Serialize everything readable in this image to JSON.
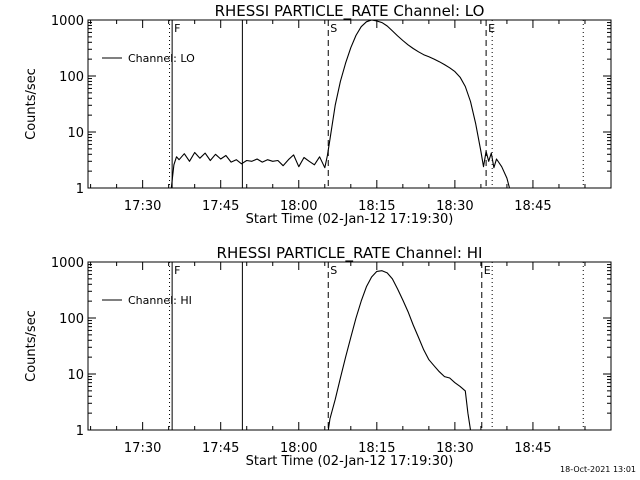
{
  "timestamp": "18-Oct-2021 13:01",
  "colors": {
    "background": "#ffffff",
    "foreground": "#000000"
  },
  "chart_data": [
    {
      "type": "line",
      "title": "RHESSI PARTICLE_RATE Channel: LO",
      "xlabel": "Start Time (02-Jan-12 17:19:30)",
      "ylabel": "Counts/sec",
      "yscale": "log",
      "ylim": [
        1,
        1000
      ],
      "xlim": [
        "17:19:30",
        "19:00:00"
      ],
      "y_ticks": [
        "1",
        "10",
        "100",
        "1000"
      ],
      "x_ticks": [
        "17:30",
        "17:45",
        "18:00",
        "18:15",
        "18:30",
        "18:45"
      ],
      "legend": {
        "position": "top-left",
        "entries": [
          "Channel: LO"
        ]
      },
      "series": [
        {
          "name": "Channel: LO",
          "x": [
            "17:35:30",
            "17:36:00",
            "17:36:30",
            "17:37:00",
            "17:38:00",
            "17:39:00",
            "17:40:00",
            "17:41:00",
            "17:42:00",
            "17:43:00",
            "17:44:00",
            "17:45:00",
            "17:46:00",
            "17:47:00",
            "17:48:00",
            "17:49:00",
            "17:50:00",
            "17:51:00",
            "17:52:00",
            "17:53:00",
            "17:54:00",
            "17:55:00",
            "17:56:00",
            "17:57:00",
            "17:58:00",
            "17:59:00",
            "18:00:00",
            "18:01:00",
            "18:02:00",
            "18:03:00",
            "18:04:00",
            "18:05:00",
            "18:05:30",
            "18:06:00",
            "18:07:00",
            "18:08:00",
            "18:09:00",
            "18:10:00",
            "18:11:00",
            "18:12:00",
            "18:13:00",
            "18:14:00",
            "18:15:00",
            "18:16:00",
            "18:17:00",
            "18:18:00",
            "18:19:00",
            "18:20:00",
            "18:21:00",
            "18:22:00",
            "18:23:00",
            "18:24:00",
            "18:25:00",
            "18:26:00",
            "18:27:00",
            "18:28:00",
            "18:29:00",
            "18:30:00",
            "18:31:00",
            "18:32:00",
            "18:33:00",
            "18:34:00",
            "18:35:00",
            "18:35:30",
            "18:36:00",
            "18:36:30",
            "18:37:00",
            "18:37:30",
            "18:38:00",
            "18:39:00",
            "18:40:00",
            "18:40:30"
          ],
          "values": [
            1,
            2.6,
            3.6,
            3.2,
            4.1,
            3.0,
            4.3,
            3.4,
            4.2,
            3.1,
            4.0,
            3.3,
            3.8,
            2.9,
            3.2,
            2.7,
            3.1,
            3.0,
            3.3,
            2.9,
            3.2,
            3.0,
            3.1,
            2.5,
            3.2,
            3.9,
            2.4,
            3.5,
            3.0,
            2.6,
            3.6,
            2.3,
            3.8,
            7.5,
            30,
            80,
            170,
            320,
            530,
            760,
            930,
            1000,
            960,
            900,
            780,
            640,
            520,
            430,
            360,
            310,
            270,
            240,
            220,
            200,
            180,
            160,
            140,
            120,
            95,
            65,
            35,
            14,
            4.5,
            2.4,
            4.5,
            3.0,
            4.2,
            2.3,
            3.3,
            2.4,
            1.5,
            1
          ]
        }
      ],
      "vertical_lines": [
        {
          "time": "17:35:10",
          "style": "dotted"
        },
        {
          "time": "17:35:40",
          "style": "solid",
          "label": "F"
        },
        {
          "time": "17:49:10",
          "style": "solid"
        },
        {
          "time": "18:05:40",
          "style": "dashed",
          "label": "S"
        },
        {
          "time": "18:36:00",
          "style": "dashed",
          "label": "E"
        },
        {
          "time": "18:37:10",
          "style": "dotted"
        },
        {
          "time": "18:54:40",
          "style": "dotted"
        }
      ]
    },
    {
      "type": "line",
      "title": "RHESSI PARTICLE_RATE Channel: HI",
      "xlabel": "Start Time (02-Jan-12 17:19:30)",
      "ylabel": "Counts/sec",
      "yscale": "log",
      "ylim": [
        1,
        1000
      ],
      "xlim": [
        "17:19:30",
        "19:00:00"
      ],
      "y_ticks": [
        "1",
        "10",
        "100",
        "1000"
      ],
      "x_ticks": [
        "17:30",
        "17:45",
        "18:00",
        "18:15",
        "18:30",
        "18:45"
      ],
      "legend": {
        "position": "top-left",
        "entries": [
          "Channel: HI"
        ]
      },
      "series": [
        {
          "name": "Channel: HI",
          "x": [
            "18:05:40",
            "18:06:00",
            "18:07:00",
            "18:08:00",
            "18:09:00",
            "18:10:00",
            "18:11:00",
            "18:12:00",
            "18:13:00",
            "18:14:00",
            "18:15:00",
            "18:16:00",
            "18:17:00",
            "18:18:00",
            "18:19:00",
            "18:20:00",
            "18:21:00",
            "18:22:00",
            "18:23:00",
            "18:24:00",
            "18:25:00",
            "18:26:00",
            "18:27:00",
            "18:28:00",
            "18:29:00",
            "18:30:00",
            "18:31:00",
            "18:32:00",
            "18:32:30",
            "18:33:00"
          ],
          "values": [
            1,
            1.6,
            3.5,
            8.5,
            20,
            45,
            100,
            200,
            360,
            540,
            680,
            700,
            640,
            500,
            330,
            210,
            130,
            75,
            45,
            27,
            18,
            14,
            11,
            9,
            8.5,
            7,
            6,
            5,
            2,
            1
          ]
        }
      ],
      "vertical_lines": [
        {
          "time": "17:35:10",
          "style": "dotted"
        },
        {
          "time": "17:35:40",
          "style": "solid",
          "label": "F"
        },
        {
          "time": "17:49:10",
          "style": "solid"
        },
        {
          "time": "18:05:40",
          "style": "dashed",
          "label": "S"
        },
        {
          "time": "18:35:10",
          "style": "dashed",
          "label": "E"
        },
        {
          "time": "18:37:10",
          "style": "dotted"
        },
        {
          "time": "18:54:40",
          "style": "dotted"
        }
      ]
    }
  ]
}
